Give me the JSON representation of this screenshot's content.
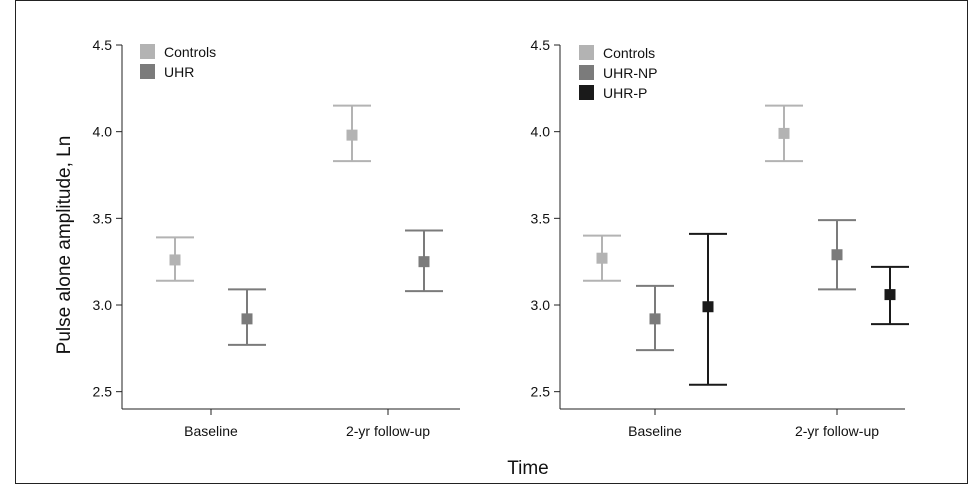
{
  "figure": {
    "ylabel": "Pulse alone amplitude, Ln",
    "xlabel": "Time"
  },
  "chart_data": [
    {
      "type": "scatter",
      "categories": [
        "Baseline",
        "2-yr follow-up"
      ],
      "ylim": [
        2.4,
        4.5
      ],
      "yticks": [
        2.5,
        3.0,
        3.5,
        4.0,
        4.5
      ],
      "ytick_labels": [
        "2.5",
        "3.0",
        "3.5",
        "4.0",
        "4.5"
      ],
      "grid": false,
      "legend_position": "top-left",
      "series": [
        {
          "name": "Controls",
          "color": "#b3b3b3",
          "values": [
            3.26,
            3.98
          ],
          "err_low": [
            3.14,
            3.83
          ],
          "err_high": [
            3.39,
            4.15
          ]
        },
        {
          "name": "UHR",
          "color": "#7b7b7b",
          "values": [
            2.92,
            3.25
          ],
          "err_low": [
            2.77,
            3.08
          ],
          "err_high": [
            3.09,
            3.43
          ]
        }
      ]
    },
    {
      "type": "scatter",
      "categories": [
        "Baseline",
        "2-yr follow-up"
      ],
      "ylim": [
        2.4,
        4.5
      ],
      "yticks": [
        2.5,
        3.0,
        3.5,
        4.0,
        4.5
      ],
      "ytick_labels": [
        "2.5",
        "3.0",
        "3.5",
        "4.0",
        "4.5"
      ],
      "grid": false,
      "legend_position": "top-left",
      "series": [
        {
          "name": "Controls",
          "color": "#b3b3b3",
          "values": [
            3.27,
            3.99
          ],
          "err_low": [
            3.14,
            3.83
          ],
          "err_high": [
            3.4,
            4.15
          ]
        },
        {
          "name": "UHR-NP",
          "color": "#7b7b7b",
          "values": [
            2.92,
            3.29
          ],
          "err_low": [
            2.74,
            3.09
          ],
          "err_high": [
            3.11,
            3.49
          ]
        },
        {
          "name": "UHR-P",
          "color": "#1a1a1a",
          "values": [
            2.99,
            3.06
          ],
          "err_low": [
            2.54,
            2.89
          ],
          "err_high": [
            3.41,
            3.22
          ]
        }
      ]
    }
  ]
}
